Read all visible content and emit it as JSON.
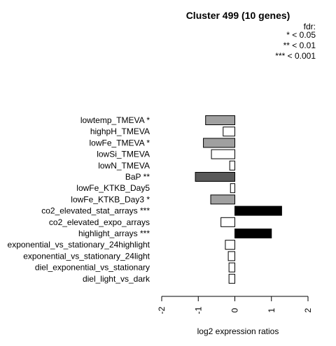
{
  "chart_data": {
    "type": "bar",
    "orientation": "horizontal",
    "title": "Cluster 499 (10 genes)",
    "xlabel": "log2 expression ratios",
    "ylabel": "",
    "xlim": [
      -2,
      2
    ],
    "xticks": [
      -2,
      -1,
      0,
      1,
      2
    ],
    "legend": {
      "title": "fdr:",
      "entries": [
        "* < 0.05",
        "** < 0.01",
        "*** < 0.001"
      ],
      "placement": "top-right"
    },
    "categories": [
      "lowtemp_TMEVA *",
      "highpH_TMEVA",
      "lowFe_TMEVA *",
      "lowSi_TMEVA",
      "lowN_TMEVA",
      "BaP **",
      "lowFe_KTKB_Day5",
      "lowFe_KTKB_Day3 *",
      "co2_elevated_stat_arrays ***",
      "co2_elevated_expo_arrays",
      "highlight_arrays ***",
      "exponential_vs_stationary_24highlight",
      "exponential_vs_stationary_24light",
      "diel_exponential_vs_stationary",
      "diel_light_vs_dark"
    ],
    "values": [
      -0.8,
      -0.32,
      -0.86,
      -0.64,
      -0.14,
      -1.08,
      -0.12,
      -0.66,
      1.28,
      -0.38,
      1.0,
      -0.26,
      -0.18,
      -0.16,
      -0.16
    ],
    "colors": [
      "#a0a0a0",
      "#ffffff",
      "#a0a0a0",
      "#ffffff",
      "#ffffff",
      "#595959",
      "#ffffff",
      "#a0a0a0",
      "#000000",
      "#ffffff",
      "#000000",
      "#ffffff",
      "#ffffff",
      "#ffffff",
      "#ffffff"
    ]
  }
}
